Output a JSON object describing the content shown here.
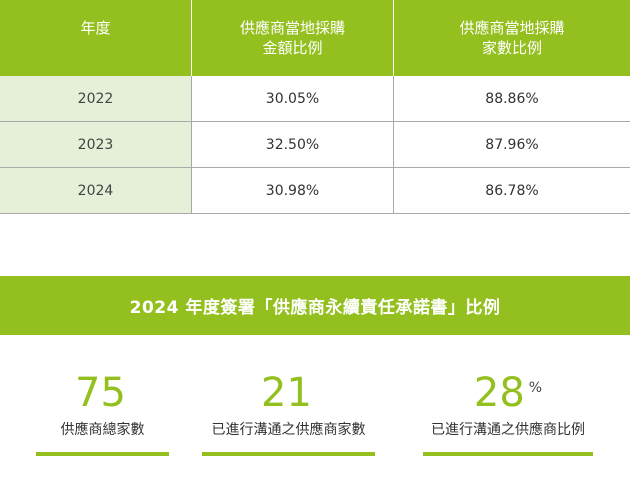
{
  "table": {
    "headers": {
      "year": "年度",
      "amount": [
        "供應商當地採購",
        "金額比例"
      ],
      "count": [
        "供應商當地採購",
        "家數比例"
      ]
    },
    "rows": [
      {
        "year": "2022",
        "amount": "30.05%",
        "count": "88.86%"
      },
      {
        "year": "2023",
        "amount": "32.50%",
        "count": "87.96%"
      },
      {
        "year": "2024",
        "amount": "30.98%",
        "count": "86.78%"
      }
    ]
  },
  "banner": {
    "title": "2024 年度簽署「供應商永續責任承諾書」比例"
  },
  "stats": [
    {
      "value": "75",
      "unit": "",
      "label": "供應商總家數"
    },
    {
      "value": "21",
      "unit": "",
      "label": "已進行溝通之供應商家數"
    },
    {
      "value": "28",
      "unit": "%",
      "label": "已進行溝通之供應商比例"
    }
  ],
  "colors": {
    "accent": "#93c01f",
    "year_cell_bg": "#e6efd8",
    "grid": "#a9a9a9"
  }
}
